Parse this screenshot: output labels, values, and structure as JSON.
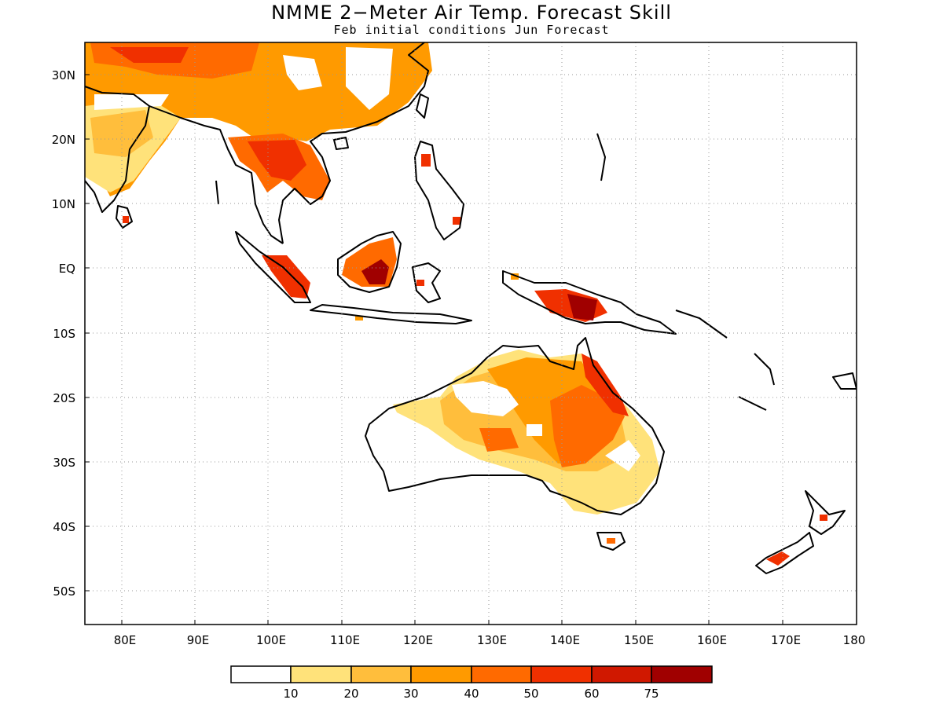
{
  "title": "NMME 2−Meter Air Temp. Forecast Skill",
  "subtitle": "Feb initial conditions  Jun Forecast",
  "map": {
    "lon_range": [
      75,
      180
    ],
    "lat_range": [
      -55,
      35
    ],
    "lon_ticks": [
      "80E",
      "90E",
      "100E",
      "110E",
      "120E",
      "130E",
      "140E",
      "150E",
      "160E",
      "170E",
      "180"
    ],
    "lat_ticks": [
      "30N",
      "20N",
      "10N",
      "EQ",
      "10S",
      "20S",
      "30S",
      "40S",
      "50S"
    ],
    "gridlines": "dotted"
  },
  "colorbar": {
    "labels": [
      "10",
      "20",
      "30",
      "40",
      "50",
      "60",
      "75"
    ],
    "colors": [
      "#ffffff",
      "#ffe27a",
      "#ffbe3c",
      "#ff9a00",
      "#ff6a00",
      "#f03000",
      "#d01800",
      "#a00000"
    ]
  }
}
